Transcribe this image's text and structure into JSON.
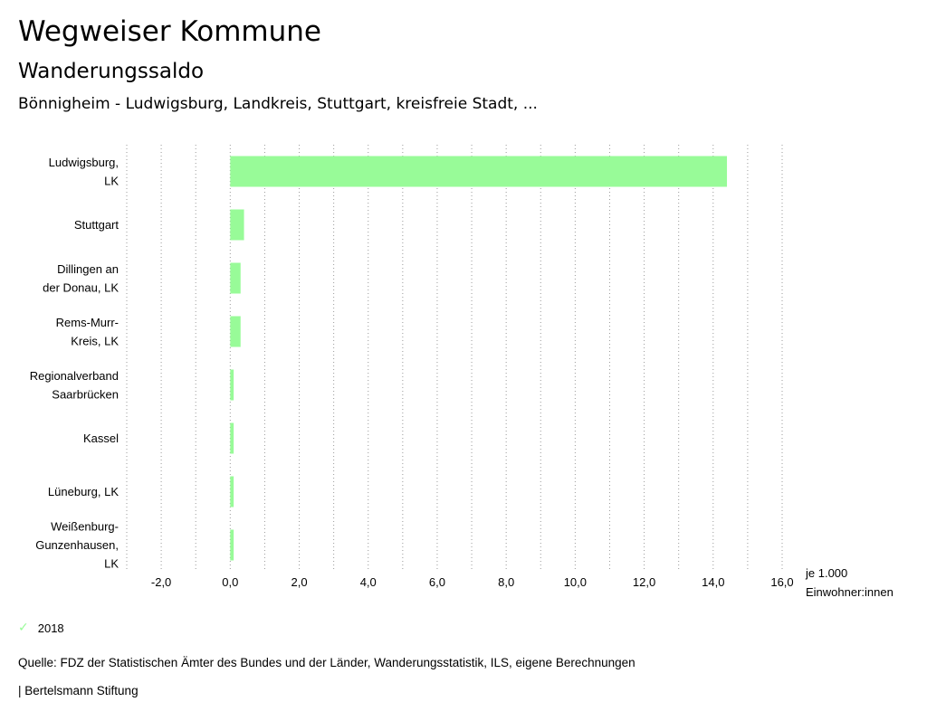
{
  "header": {
    "title": "Wegweiser Kommune",
    "subtitle": "Wanderungssaldo",
    "region": "Bönnigheim - Ludwigsburg, Landkreis, Stuttgart, kreisfreie Stadt, ..."
  },
  "chart_data": {
    "type": "bar",
    "orientation": "horizontal",
    "categories": [
      [
        "Ludwigsburg,",
        "LK"
      ],
      [
        "Stuttgart"
      ],
      [
        "Dillingen an",
        "der Donau, LK"
      ],
      [
        "Rems-Murr-",
        "Kreis, LK"
      ],
      [
        "Regionalverband",
        "Saarbrücken"
      ],
      [
        "Kassel"
      ],
      [
        "Lüneburg, LK"
      ],
      [
        "Weißenburg-",
        "Gunzenhausen,",
        "LK"
      ]
    ],
    "series": [
      {
        "name": "2018",
        "color": "#98fb98",
        "values": [
          14.4,
          0.4,
          0.3,
          0.3,
          0.1,
          0.1,
          0.1,
          0.1
        ]
      }
    ],
    "xlim": [
      -3.0,
      16.0
    ],
    "xticks": [
      -2.0,
      0.0,
      2.0,
      4.0,
      6.0,
      8.0,
      10.0,
      12.0,
      14.0,
      16.0
    ],
    "xtick_labels": [
      "-2,0",
      "0,0",
      "2,0",
      "4,0",
      "6,0",
      "8,0",
      "10,0",
      "12,0",
      "14,0",
      "16,0"
    ],
    "xlabel": [
      "je 1.000",
      "Einwohner:innen"
    ],
    "grid": true,
    "legend_position": "bottom-left"
  },
  "legend": {
    "label": "2018",
    "color": "#98fb98"
  },
  "source": "Quelle: FDZ der Statistischen Ämter des Bundes und der Länder, Wanderungsstatistik, ILS, eigene Berechnungen",
  "footer": "| Bertelsmann Stiftung"
}
